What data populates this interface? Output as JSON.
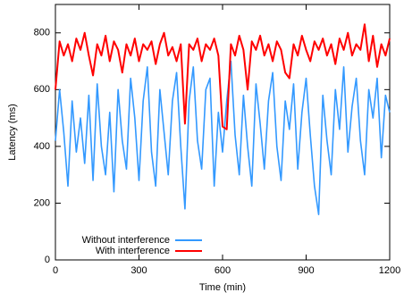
{
  "chart_data": {
    "type": "line",
    "x_label": "Time (min)",
    "y_label": "Latency (ms)",
    "xlim": [
      0,
      1200
    ],
    "xticks": [
      0,
      300,
      600,
      900,
      1200
    ],
    "ylim": [
      0,
      900
    ],
    "yticks": [
      0,
      200,
      400,
      600,
      800
    ],
    "legend": "lower left",
    "x": [
      0,
      15,
      30,
      45,
      60,
      75,
      90,
      105,
      120,
      135,
      150,
      165,
      180,
      195,
      210,
      225,
      240,
      255,
      270,
      285,
      300,
      315,
      330,
      345,
      360,
      375,
      390,
      405,
      420,
      435,
      450,
      465,
      480,
      495,
      510,
      525,
      540,
      555,
      570,
      585,
      600,
      615,
      630,
      645,
      660,
      675,
      690,
      705,
      720,
      735,
      750,
      765,
      780,
      795,
      810,
      825,
      840,
      855,
      870,
      885,
      900,
      915,
      930,
      945,
      960,
      975,
      990,
      1005,
      1020,
      1035,
      1050,
      1065,
      1080,
      1095,
      1110,
      1125,
      1140,
      1155,
      1170,
      1185,
      1200
    ],
    "series": [
      {
        "name": "Without interference",
        "color": "#3399ff",
        "values": [
          420,
          600,
          450,
          260,
          560,
          380,
          500,
          340,
          580,
          280,
          620,
          400,
          300,
          520,
          240,
          600,
          420,
          320,
          640,
          500,
          280,
          560,
          680,
          380,
          260,
          600,
          450,
          300,
          560,
          660,
          400,
          180,
          560,
          680,
          420,
          320,
          600,
          640,
          260,
          520,
          380,
          560,
          700,
          440,
          300,
          580,
          400,
          260,
          620,
          480,
          320,
          560,
          660,
          400,
          280,
          560,
          460,
          620,
          320,
          520,
          640,
          440,
          260,
          160,
          580,
          420,
          300,
          600,
          460,
          680,
          380,
          540,
          640,
          420,
          300,
          600,
          500,
          640,
          360,
          580,
          520
        ]
      },
      {
        "name": "With interference",
        "color": "#ff0000",
        "values": [
          600,
          770,
          720,
          760,
          700,
          780,
          740,
          800,
          720,
          650,
          760,
          720,
          790,
          700,
          770,
          740,
          660,
          760,
          720,
          780,
          700,
          760,
          740,
          770,
          690,
          760,
          800,
          720,
          750,
          700,
          760,
          480,
          760,
          740,
          780,
          700,
          760,
          740,
          780,
          720,
          470,
          460,
          760,
          720,
          790,
          740,
          600,
          770,
          740,
          790,
          720,
          760,
          700,
          770,
          740,
          660,
          640,
          760,
          720,
          790,
          740,
          700,
          770,
          740,
          780,
          720,
          760,
          690,
          780,
          740,
          800,
          720,
          760,
          740,
          830,
          700,
          790,
          680,
          760,
          720,
          780
        ]
      }
    ]
  }
}
